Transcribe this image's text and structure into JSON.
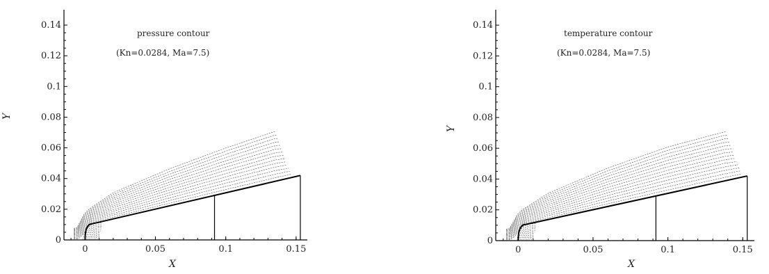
{
  "chart_data": [
    {
      "type": "contour",
      "title_line1": "pressure contour",
      "title_line2": "(Kn=0.0284, Ma=7.5)",
      "xlabel": "X",
      "ylabel": "Y",
      "xlim": [
        -0.015,
        0.155
      ],
      "ylim": [
        0,
        0.15
      ],
      "xticks": [
        0,
        0.05,
        0.1,
        0.15
      ],
      "xtick_labels": [
        "0",
        "0.05",
        "0.1",
        "0.15"
      ],
      "yticks": [
        0,
        0.02,
        0.04,
        0.06,
        0.08,
        0.1,
        0.12,
        0.14
      ],
      "ytick_labels": [
        "0",
        "0.02",
        "0.04",
        "0.06",
        "0.08",
        "0.1",
        "0.12",
        "0.14"
      ],
      "body": {
        "nose_center": [
          0.009,
          0.0
        ],
        "nose_radius": 0.009,
        "cone_start": [
          0.005,
          0.0105
        ],
        "cone_end": [
          0.153,
          0.042
        ],
        "vertical_line_x": 0.092
      },
      "shock_outer_x": [
        -0.006,
        0.0,
        0.02,
        0.06,
        0.1,
        0.135
      ],
      "shock_outer_y": [
        0.008,
        0.019,
        0.032,
        0.048,
        0.062,
        0.073
      ],
      "contour_count": 14,
      "shade": "#333333"
    },
    {
      "type": "contour",
      "title_line1": "temperature contour",
      "title_line2": "(Kn=0.0284, Ma=7.5)",
      "xlabel": "X",
      "ylabel": "Y",
      "xlim": [
        -0.015,
        0.155
      ],
      "ylim": [
        0,
        0.15
      ],
      "xticks": [
        0,
        0.05,
        0.1,
        0.15
      ],
      "xtick_labels": [
        "0",
        "0.05",
        "0.1",
        "0.15"
      ],
      "yticks": [
        0,
        0.02,
        0.04,
        0.06,
        0.08,
        0.1,
        0.12,
        0.14
      ],
      "ytick_labels": [
        "0",
        "0.02",
        "0.04",
        "0.06",
        "0.08",
        "0.1",
        "0.12",
        "0.14"
      ],
      "body": {
        "nose_center": [
          0.009,
          0.0
        ],
        "nose_radius": 0.009,
        "cone_start": [
          0.005,
          0.0105
        ],
        "cone_end": [
          0.153,
          0.042
        ],
        "vertical_line_x": 0.092
      },
      "shock_outer_x": [
        -0.006,
        0.0,
        0.02,
        0.06,
        0.1,
        0.138
      ],
      "shock_outer_y": [
        0.008,
        0.019,
        0.032,
        0.049,
        0.063,
        0.073
      ],
      "contour_count": 14,
      "shade": "#444444"
    }
  ]
}
